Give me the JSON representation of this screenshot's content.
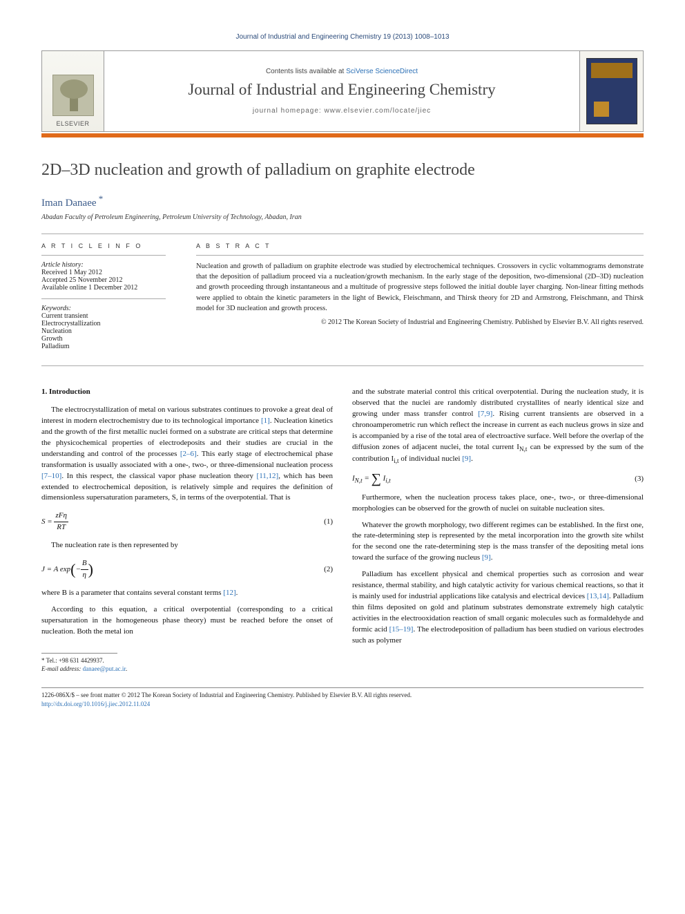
{
  "running_head": "Journal of Industrial and Engineering Chemistry 19 (2013) 1008–1013",
  "masthead": {
    "publisher_word": "ELSEVIER",
    "contents_prefix": "Contents lists available at ",
    "contents_link": "SciVerse ScienceDirect",
    "journal_name": "Journal of Industrial and Engineering Chemistry",
    "homepage_prefix": "journal homepage: ",
    "homepage_url": "www.elsevier.com/locate/jiec"
  },
  "title": "2D–3D nucleation and growth of palladium on graphite electrode",
  "author": "Iman Danaee",
  "affiliation": "Abadan Faculty of Petroleum Engineering, Petroleum University of Technology, Abadan, Iran",
  "article_info": {
    "heading": "A R T I C L E   I N F O",
    "history_label": "Article history:",
    "received": "Received 1 May 2012",
    "accepted": "Accepted 25 November 2012",
    "online": "Available online 1 December 2012",
    "keywords_label": "Keywords:",
    "keywords": [
      "Current transient",
      "Electrocrystallization",
      "Nucleation",
      "Growth",
      "Palladium"
    ]
  },
  "abstract": {
    "heading": "A B S T R A C T",
    "text": "Nucleation and growth of palladium on graphite electrode was studied by electrochemical techniques. Crossovers in cyclic voltammograms demonstrate that the deposition of palladium proceed via a nucleation/growth mechanism. In the early stage of the deposition, two-dimensional (2D–3D) nucleation and growth proceeding through instantaneous and a multitude of progressive steps followed the initial double layer charging. Non-linear fitting methods were applied to obtain the kinetic parameters in the light of Bewick, Fleischmann, and Thirsk theory for 2D and Armstrong, Fleischmann, and Thirsk model for 3D nucleation and growth process.",
    "copyright": "© 2012 The Korean Society of Industrial and Engineering Chemistry. Published by Elsevier B.V. All rights reserved."
  },
  "section1": {
    "heading": "1. Introduction",
    "p1_a": "The electrocrystallization of metal on various substrates continues to provoke a great deal of interest in modern electrochemistry due to its technological importance ",
    "c1": "[1]",
    "p1_b": ". Nucleation kinetics and the growth of the first metallic nuclei formed on a substrate are critical steps that determine the physicochemical properties of electrodeposits and their studies are crucial in the understanding and control of the processes ",
    "c2": "[2–6]",
    "p1_c": ". This early stage of electrochemical phase transformation is usually associated with a one-, two-, or three-dimensional nucleation process ",
    "c3": "[7–10]",
    "p1_d": ". In this respect, the classical vapor phase nucleation theory ",
    "c4": "[11,12]",
    "p1_e": ", which has been extended to electrochemical deposition, is relatively simple and requires the definition of dimensionless supersaturation parameters, S, in terms of the overpotential. That is",
    "eq1": {
      "lhs": "S = ",
      "num": "zFη",
      "den": "RT",
      "num_label": "(1)"
    },
    "p2": "The nucleation rate is then represented by",
    "eq2": {
      "lhs": "J = A exp",
      "inner_num": "B",
      "inner_den": "η",
      "num_label": "(2)"
    },
    "p3_a": "where B is a parameter that contains several constant terms ",
    "c5": "[12]",
    "p3_b": ".",
    "p4": "According to this equation, a critical overpotential (corresponding to a critical supersaturation in the homogeneous phase theory) must be reached before the onset of nucleation. Both the metal ion",
    "p5_a": "and the substrate material control this critical overpotential. During the nucleation study, it is observed that the nuclei are randomly distributed crystallites of nearly identical size and growing under mass transfer control ",
    "c6": "[7,9]",
    "p5_b": ". Rising current transients are observed in a chronoamperometric run which reflect the increase in current as each nucleus grows in size and is accompanied by a rise of the total area of electroactive surface. Well before the overlap of the diffusion zones of adjacent nuclei, the total current I",
    "sub1": "N,t",
    "p5_c": " can be expressed by the sum of the contribution I",
    "sub2": "i,t",
    "p5_d": " of individual nuclei ",
    "c7": "[9]",
    "p5_e": ".",
    "eq3": {
      "lhs_a": "I",
      "lhs_sub": "N,t",
      "lhs_b": " = ",
      "rhs_a": "I",
      "rhs_sub": "i,t",
      "num_label": "(3)"
    },
    "p6": "Furthermore, when the nucleation process takes place, one-, two-, or three-dimensional morphologies can be observed for the growth of nuclei on suitable nucleation sites.",
    "p7_a": "Whatever the growth morphology, two different regimes can be established. In the first one, the rate-determining step is represented by the metal incorporation into the growth site whilst for the second one the rate-determining step is the mass transfer of the depositing metal ions toward the surface of the growing nucleus ",
    "c8": "[9]",
    "p7_b": ".",
    "p8_a": "Palladium has excellent physical and chemical properties such as corrosion and wear resistance, thermal stability, and high catalytic activity for various chemical reactions, so that it is mainly used for industrial applications like catalysis and electrical devices ",
    "c9": "[13,14]",
    "p8_b": ". Palladium thin films deposited on gold and platinum substrates demonstrate extremely high catalytic activities in the electrooxidation reaction of small organic molecules such as formaldehyde and formic acid ",
    "c10": "[15–19]",
    "p8_c": ". The electrodeposition of palladium has been studied on various electrodes such as polymer"
  },
  "footnote": {
    "tel_label": "* Tel.: +98 631 4429937.",
    "email_label": "E-mail address:",
    "email": "danaee@put.ac.ir"
  },
  "bottom": {
    "line1": "1226-086X/$ – see front matter © 2012 The Korean Society of Industrial and Engineering Chemistry. Published by Elsevier B.V. All rights reserved.",
    "doi": "http://dx.doi.org/10.1016/j.jiec.2012.11.024"
  }
}
